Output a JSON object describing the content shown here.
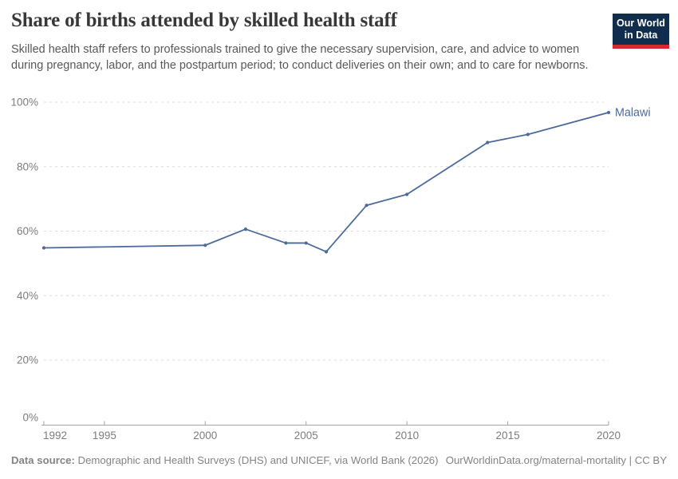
{
  "header": {
    "title": "Share of births attended by skilled health staff",
    "subtitle": "Skilled health staff refers to professionals trained to give the necessary supervision, care, and advice to women during pregnancy, labor, and the postpartum period; to conduct deliveries on their own; and to care for newborns.",
    "logo": {
      "line1": "Our World",
      "line2": "in Data",
      "bg_color": "#102d4e",
      "bar_color": "#d7282f"
    }
  },
  "chart_data": {
    "type": "line",
    "title": "Share of births attended by skilled health staff",
    "xlabel": "",
    "ylabel": "",
    "xlim": [
      1992,
      2020
    ],
    "ylim": [
      0,
      100
    ],
    "x_ticks": [
      1992,
      1995,
      2000,
      2005,
      2010,
      2015,
      2020
    ],
    "y_ticks": [
      0,
      20,
      40,
      60,
      80,
      100
    ],
    "y_unit": "%",
    "grid": "horizontal dashed",
    "legend_position": "end-of-line label",
    "series": [
      {
        "name": "Malawi",
        "color": "#4c6a9c",
        "points": [
          [
            1992,
            54.8
          ],
          [
            2000,
            55.6
          ],
          [
            2002,
            60.6
          ],
          [
            2004,
            56.3
          ],
          [
            2005,
            56.3
          ],
          [
            2006,
            53.6
          ],
          [
            2008,
            68.0
          ],
          [
            2010,
            71.4
          ],
          [
            2014,
            87.5
          ],
          [
            2016,
            90.0
          ],
          [
            2020,
            96.8
          ]
        ]
      }
    ]
  },
  "footer": {
    "source_label": "Data source:",
    "source_text": " Demographic and Health Surveys (DHS) and UNICEF, via World Bank (2026)",
    "credit": "OurWorldinData.org/maternal-mortality | CC BY"
  }
}
